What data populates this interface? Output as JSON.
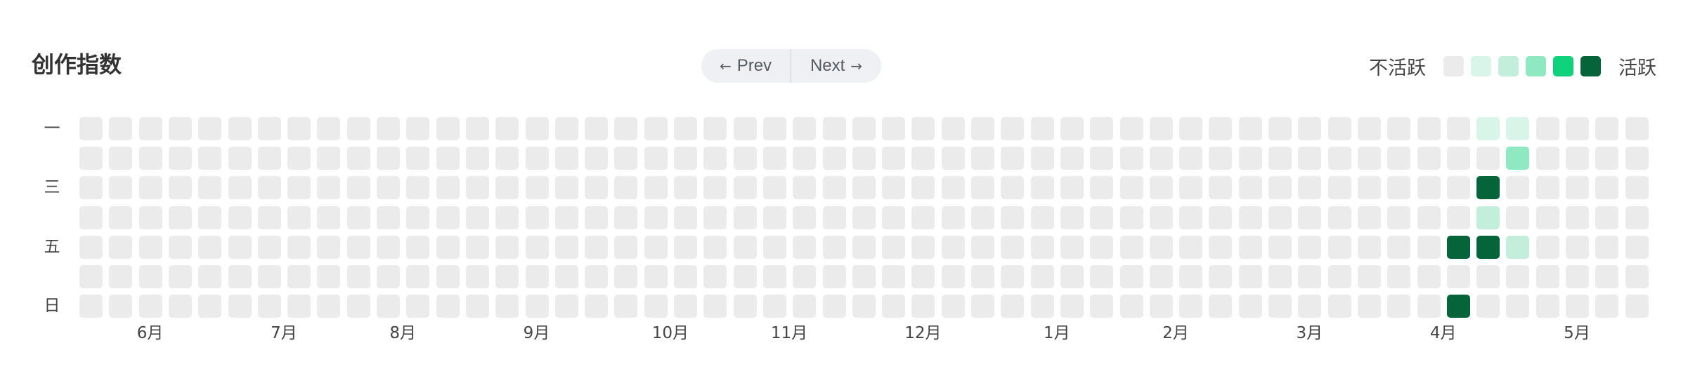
{
  "title": "创作指数",
  "pager": {
    "prev_arrow": "←",
    "prev_label": "Prev",
    "next_label": "Next",
    "next_arrow": "→"
  },
  "legend": {
    "low_label": "不活跃",
    "high_label": "活跃",
    "levels": [
      "#ebebeb",
      "#d9f4e8",
      "#c3eedb",
      "#8ee9c2",
      "#10d27c",
      "#05643a"
    ]
  },
  "row_labels": [
    "一",
    "",
    "三",
    "",
    "五",
    "",
    "日"
  ],
  "months": [
    {
      "label": "6月",
      "week": 2
    },
    {
      "label": "7月",
      "week": 6.5
    },
    {
      "label": "8月",
      "week": 10.5
    },
    {
      "label": "9月",
      "week": 15
    },
    {
      "label": "10月",
      "week": 19.5
    },
    {
      "label": "11月",
      "week": 23.5
    },
    {
      "label": "12月",
      "week": 28
    },
    {
      "label": "1月",
      "week": 32.5
    },
    {
      "label": "2月",
      "week": 36.5
    },
    {
      "label": "3月",
      "week": 41
    },
    {
      "label": "4月",
      "week": 45.5
    },
    {
      "label": "5月",
      "week": 50
    }
  ],
  "heatmap": {
    "weeks": 53,
    "days": 7,
    "active_cells": [
      {
        "week": 47,
        "day": 0,
        "level": 1
      },
      {
        "week": 48,
        "day": 0,
        "level": 1
      },
      {
        "week": 48,
        "day": 1,
        "level": 3
      },
      {
        "week": 47,
        "day": 2,
        "level": 5
      },
      {
        "week": 47,
        "day": 3,
        "level": 2
      },
      {
        "week": 46,
        "day": 4,
        "level": 5
      },
      {
        "week": 47,
        "day": 4,
        "level": 5
      },
      {
        "week": 48,
        "day": 4,
        "level": 2
      },
      {
        "week": 46,
        "day": 6,
        "level": 5
      }
    ]
  }
}
